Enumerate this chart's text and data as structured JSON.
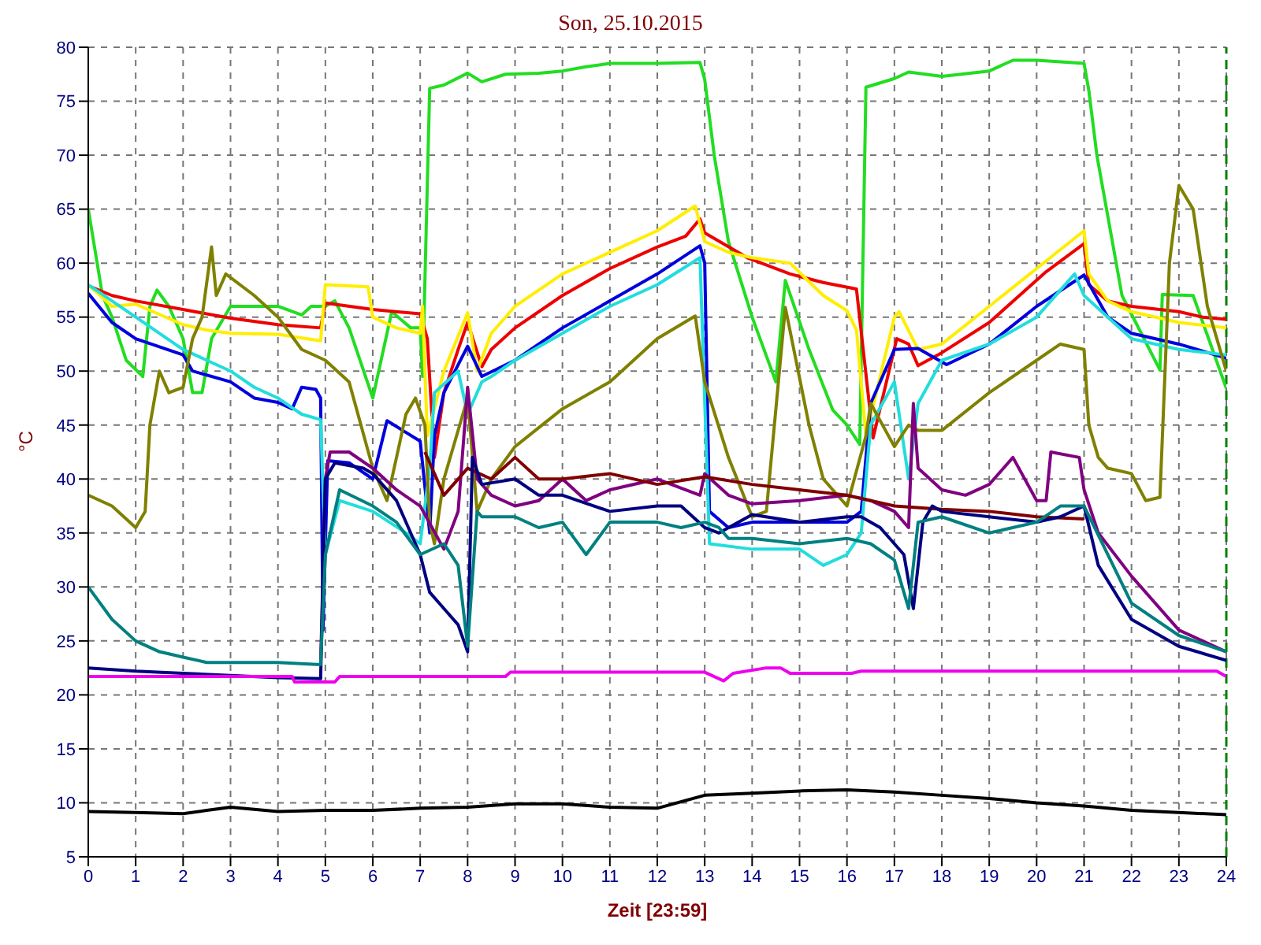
{
  "chart_data": {
    "type": "line",
    "title": "Son, 25.10.2015",
    "xlabel": "Zeit [23:59]",
    "ylabel": "°C",
    "xlim": [
      0,
      24
    ],
    "xticks": [
      0,
      1,
      2,
      3,
      4,
      5,
      6,
      7,
      8,
      9,
      10,
      11,
      12,
      13,
      14,
      15,
      16,
      17,
      18,
      19,
      20,
      21,
      22,
      23,
      24
    ],
    "ylim": [
      5,
      80
    ],
    "yticks": [
      5,
      10,
      15,
      20,
      25,
      30,
      35,
      40,
      45,
      50,
      55,
      60,
      65,
      70,
      75,
      80
    ],
    "grid": true,
    "line_style": "solid",
    "marker": "none",
    "legend": false,
    "ref_lines": [
      {
        "axis": "x",
        "value": 24,
        "color": "#008000",
        "line_style": "dashed"
      }
    ],
    "series": [
      {
        "color": "#22dd22",
        "x": [
          0,
          0.3,
          0.5,
          0.8,
          1.15,
          1.3,
          1.45,
          1.7,
          2.0,
          2.2,
          2.4,
          2.6,
          3.0,
          4.0,
          4.5,
          4.7,
          5.0,
          5.2,
          5.5,
          6.0,
          6.4,
          6.8,
          7.0,
          7.05,
          7.2,
          7.5,
          8.0,
          8.3,
          8.8,
          9.5,
          10.0,
          10.5,
          11.0,
          12.0,
          12.9,
          13.0,
          13.2,
          13.5,
          14.0,
          14.5,
          14.7,
          15.2,
          15.7,
          16.0,
          16.27,
          16.4,
          17.0,
          17.3,
          18.0,
          19.0,
          19.5,
          20.0,
          21.0,
          21.1,
          21.27,
          21.8,
          22.6,
          22.65,
          23.3,
          24.0
        ],
        "values": [
          65,
          57,
          55,
          51,
          49.5,
          56,
          57.5,
          56,
          53,
          48,
          48,
          53,
          56,
          56,
          55.2,
          56,
          56,
          56.5,
          54,
          47.5,
          55.5,
          54,
          54,
          49.5,
          76.2,
          76.5,
          77.6,
          76.8,
          77.5,
          77.6,
          77.8,
          78.2,
          78.5,
          78.5,
          78.6,
          77,
          70,
          62,
          55,
          49,
          58.4,
          52,
          46.4,
          45,
          43.2,
          76.3,
          77.1,
          77.7,
          77.3,
          77.8,
          78.8,
          78.8,
          78.5,
          76,
          70,
          57,
          50.1,
          57.1,
          57,
          48.4
        ]
      },
      {
        "color": "#ee0000",
        "x": [
          0,
          0.5,
          1,
          2,
          3,
          4,
          4.9,
          5.0,
          6.0,
          7.0,
          7.15,
          7.3,
          7.5,
          7.8,
          8.0,
          8.3,
          8.5,
          9,
          10,
          11,
          12,
          12.6,
          12.9,
          13.0,
          13.9,
          14.8,
          15.5,
          16.2,
          16.55,
          17.05,
          17.3,
          17.5,
          18,
          19,
          20.2,
          21.0,
          21.1,
          21.5,
          22,
          23,
          23.5,
          24
        ],
        "values": [
          57.9,
          57,
          56.5,
          55.7,
          54.9,
          54.3,
          54,
          56.3,
          55.7,
          55.3,
          53,
          42,
          48,
          52,
          54.5,
          50.4,
          52,
          54,
          57,
          59.5,
          61.5,
          62.5,
          64.1,
          62.8,
          60.5,
          59,
          58.2,
          57.6,
          43.8,
          53,
          52.5,
          50.5,
          51.7,
          54.5,
          59.2,
          61.8,
          58,
          56.5,
          56,
          55.5,
          55,
          54.8
        ]
      },
      {
        "color": "#ffee00",
        "x": [
          0,
          0.5,
          1,
          2,
          2.5,
          3,
          4,
          4.9,
          5.0,
          5.9,
          6.0,
          6.5,
          7.0,
          7.05,
          7.15,
          7.5,
          8.0,
          8.2,
          8.5,
          9,
          10,
          11,
          12,
          12.8,
          13.0,
          13.5,
          14,
          14.8,
          15.5,
          16.0,
          16.2,
          16.4,
          17.0,
          17.1,
          17.5,
          18,
          19,
          20,
          21,
          21.1,
          21.5,
          22,
          23,
          24
        ],
        "values": [
          58,
          56,
          56.2,
          54.3,
          53.8,
          53.5,
          53.4,
          52.8,
          58,
          57.8,
          55,
          54,
          53.5,
          56,
          44,
          50,
          55.4,
          50,
          53.5,
          56,
          59,
          61,
          63,
          65.3,
          62,
          61,
          60.5,
          60,
          57,
          55.6,
          53.8,
          44,
          55,
          55.5,
          52,
          52.5,
          56,
          59.5,
          63,
          59,
          56.5,
          55.5,
          54.5,
          54
        ]
      },
      {
        "color": "#0000dd",
        "x": [
          0,
          0.5,
          1,
          2,
          2.2,
          3,
          3.5,
          4,
          4.3,
          4.5,
          4.8,
          4.9,
          4.95,
          5.05,
          5.5,
          6.0,
          6.3,
          7.0,
          7.2,
          7.3,
          7.5,
          8.0,
          8.3,
          9,
          10,
          11,
          12,
          12.9,
          13.0,
          13.1,
          13.5,
          14,
          15,
          16,
          16.3,
          16.5,
          17,
          17.5,
          18.1,
          19,
          20,
          21,
          21.5,
          22,
          23,
          24
        ],
        "values": [
          57.2,
          54.5,
          53,
          51.5,
          50,
          49,
          47.5,
          47.1,
          46.5,
          48.5,
          48.3,
          47.5,
          26,
          41.7,
          41.5,
          40,
          45.4,
          43.5,
          35,
          44,
          48,
          52.3,
          49.5,
          51,
          54,
          56.5,
          59,
          61.6,
          60,
          37,
          35.5,
          36,
          36,
          36,
          37,
          47,
          52,
          52.1,
          50.6,
          52.5,
          56,
          58.9,
          55,
          53.5,
          52.5,
          51.2
        ]
      },
      {
        "color": "#22dddd",
        "x": [
          0,
          1,
          2,
          2.5,
          3,
          3.5,
          4,
          4.5,
          4.9,
          5.0,
          5.3,
          6,
          6.7,
          7.0,
          7.2,
          7.3,
          7.8,
          8.0,
          8.3,
          8.5,
          9,
          10,
          11,
          12,
          12.9,
          13.1,
          14,
          15,
          15.5,
          16,
          16.3,
          16.5,
          17,
          17.3,
          17.5,
          18,
          19,
          20,
          20.8,
          21,
          21.5,
          22,
          23,
          24
        ],
        "values": [
          58,
          55,
          52,
          51,
          50,
          48.5,
          47.5,
          46,
          45.5,
          33,
          38,
          37,
          35,
          34,
          41,
          48,
          50,
          46,
          49,
          49.5,
          51,
          53.5,
          56,
          58,
          60.5,
          34,
          33.5,
          33.5,
          32,
          33,
          35,
          45,
          49,
          40,
          47,
          51,
          52.5,
          55,
          59,
          57,
          55,
          53,
          52,
          51.5
        ]
      },
      {
        "color": "#808000",
        "x": [
          0,
          0.5,
          1.0,
          1.2,
          1.3,
          1.5,
          1.7,
          2.0,
          2.2,
          2.4,
          2.6,
          2.7,
          2.9,
          3.5,
          4.0,
          4.5,
          5.0,
          5.5,
          6.0,
          6.3,
          6.5,
          6.7,
          6.9,
          7.1,
          7.2,
          7.3,
          7.5,
          8.0,
          8.2,
          8.5,
          9,
          10,
          11,
          12,
          12.8,
          13.0,
          13.5,
          14.0,
          14.3,
          14.7,
          15.2,
          15.5,
          16,
          16.4,
          16.5,
          17.0,
          17.3,
          17.5,
          18,
          19,
          20,
          20.5,
          21.0,
          21.1,
          21.3,
          21.5,
          22.0,
          22.3,
          22.6,
          22.8,
          23.0,
          23.3,
          23.6,
          24
        ],
        "values": [
          38.5,
          37.5,
          35.5,
          37,
          45,
          50,
          48,
          48.5,
          53,
          55,
          61.5,
          57,
          59,
          57,
          55,
          52,
          51,
          49,
          41,
          38,
          42,
          46,
          47.5,
          45,
          36,
          34,
          40,
          47.5,
          37,
          40,
          43,
          46.5,
          49,
          53,
          55.1,
          49,
          42,
          36.5,
          37,
          55.9,
          45,
          40,
          37.5,
          44,
          47,
          43,
          45,
          44.5,
          44.5,
          48,
          51,
          52.5,
          52,
          45,
          42,
          41,
          40.5,
          38,
          38.3,
          60,
          67.2,
          65,
          56,
          50
        ]
      },
      {
        "color": "#800080",
        "x": [
          4.9,
          5.0,
          5.1,
          5.5,
          6.0,
          6.5,
          7.0,
          7.5,
          7.8,
          8.0,
          8.2,
          8.5,
          9.0,
          9.5,
          10,
          10.5,
          11,
          12,
          12.9,
          13.0,
          13.5,
          14,
          15,
          16,
          16.5,
          17.0,
          17.3,
          17.4,
          17.5,
          18,
          18.5,
          19,
          19.5,
          20,
          20.2,
          20.3,
          20.9,
          21,
          21.3,
          22,
          23,
          24
        ],
        "values": [
          22.7,
          40,
          42.5,
          42.5,
          41,
          39,
          37.5,
          33.5,
          37,
          48.5,
          40,
          38.5,
          37.5,
          38,
          40,
          38,
          39,
          40,
          38.5,
          40.5,
          38.5,
          37.7,
          38,
          38.5,
          38,
          37,
          35.5,
          47,
          41,
          39,
          38.5,
          39.5,
          42,
          38,
          38,
          42.5,
          42,
          39,
          35,
          31,
          26,
          24
        ]
      },
      {
        "color": "#800000",
        "x": [
          7.1,
          7.5,
          8.0,
          8.5,
          9.0,
          9.5,
          10,
          11,
          12,
          13,
          14,
          15,
          16,
          17,
          18,
          19,
          20,
          21
        ],
        "values": [
          42.5,
          38.5,
          41,
          40,
          42,
          40,
          40,
          40.5,
          39.5,
          40.2,
          39.5,
          39,
          38.5,
          37.5,
          37.2,
          37,
          36.5,
          36.3
        ]
      },
      {
        "color": "#000080",
        "x": [
          0,
          1,
          2,
          3,
          4,
          4.9,
          5.0,
          5.2,
          5.8,
          6.0,
          6.5,
          7.0,
          7.2,
          7.5,
          7.8,
          8.0,
          8.1,
          8.3,
          9,
          9.5,
          10,
          11,
          12,
          12.5,
          13,
          13.3,
          14,
          15,
          16,
          16.3,
          16.7,
          17,
          17.2,
          17.4,
          17.6,
          17.8,
          18,
          19,
          20,
          20.5,
          21,
          21.3,
          22,
          23,
          24
        ],
        "values": [
          22.5,
          22.2,
          22,
          21.8,
          21.6,
          21.5,
          40,
          41.5,
          41,
          40.5,
          38,
          33,
          29.5,
          28,
          26.5,
          24,
          42,
          39.5,
          40,
          38.5,
          38.5,
          37,
          37.5,
          37.5,
          35.5,
          35,
          36.7,
          36,
          36.5,
          36.5,
          35.5,
          34,
          33,
          28,
          36,
          37.5,
          37,
          36.5,
          36,
          36.5,
          37.5,
          32,
          27,
          24.5,
          23.2
        ]
      },
      {
        "color": "#008080",
        "x": [
          0,
          0.5,
          1,
          1.5,
          2,
          2.5,
          3,
          4,
          4.9,
          5.0,
          5.3,
          6,
          6.5,
          7,
          7.5,
          7.8,
          8.0,
          8.2,
          8.3,
          9,
          9.5,
          10,
          10.5,
          11,
          12,
          12.5,
          13,
          13.3,
          13.5,
          14,
          15,
          16,
          16.5,
          17,
          17.3,
          17.5,
          18,
          19,
          20,
          20.5,
          21,
          21.5,
          22,
          23,
          24
        ],
        "values": [
          30,
          27,
          25,
          24,
          23.5,
          23,
          23,
          23,
          22.8,
          33,
          39,
          37.5,
          36,
          33,
          34,
          32,
          24.5,
          37,
          36.5,
          36.5,
          35.5,
          36,
          33,
          36,
          36,
          35.5,
          36,
          35.5,
          34.5,
          34.5,
          34,
          34.5,
          34,
          32.5,
          28,
          36,
          36.5,
          35,
          36,
          37.5,
          37.5,
          33,
          28.5,
          25.5,
          24
        ]
      },
      {
        "color": "#ee00ee",
        "x": [
          0,
          4.3,
          4.35,
          5.2,
          5.3,
          8.8,
          8.9,
          13.0,
          13.4,
          13.6,
          14.3,
          14.6,
          14.8,
          16.1,
          16.3,
          23.8,
          24
        ],
        "values": [
          21.7,
          21.7,
          21.2,
          21.2,
          21.7,
          21.7,
          22.1,
          22.1,
          21.3,
          22,
          22.5,
          22.5,
          22,
          22,
          22.2,
          22.2,
          21.7
        ]
      },
      {
        "color": "#000000",
        "x": [
          0,
          1,
          2,
          2.5,
          3,
          4,
          5,
          6,
          7,
          8,
          9,
          10,
          11,
          12,
          13,
          14,
          15,
          16,
          17,
          18,
          19,
          20,
          21,
          22,
          23,
          24
        ],
        "values": [
          9.2,
          9.1,
          9,
          9.3,
          9.6,
          9.2,
          9.3,
          9.3,
          9.5,
          9.6,
          9.9,
          9.9,
          9.6,
          9.5,
          10.7,
          10.9,
          11.1,
          11.2,
          11,
          10.7,
          10.4,
          10,
          9.7,
          9.3,
          9.1,
          8.9
        ]
      }
    ]
  }
}
